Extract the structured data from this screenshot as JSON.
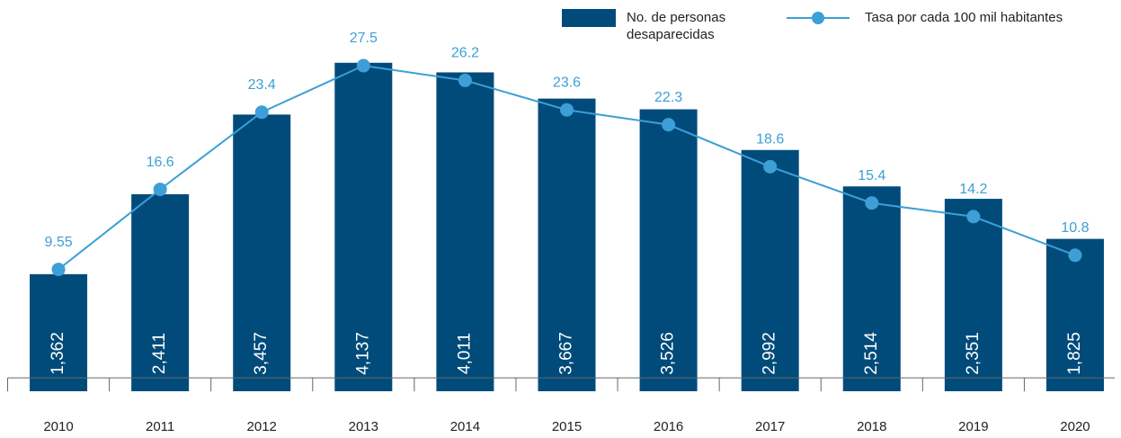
{
  "chart_data": {
    "type": "bar_line",
    "categories": [
      "2010",
      "2011",
      "2012",
      "2013",
      "2014",
      "2015",
      "2016",
      "2017",
      "2018",
      "2019",
      "2020"
    ],
    "series": [
      {
        "name": "No. de personas desaparecidas",
        "type": "bar",
        "color": "#004b7a",
        "values": [
          1362,
          2411,
          3457,
          4137,
          4011,
          3667,
          3526,
          2992,
          2514,
          2351,
          1825
        ],
        "value_labels": [
          "1,362",
          "2,411",
          "3,457",
          "4,137",
          "4,011",
          "3,667",
          "3,526",
          "2,992",
          "2,514",
          "2,351",
          "1,825"
        ]
      },
      {
        "name": "Tasa por cada 100 mil habitantes",
        "type": "line",
        "color": "#3d9fd6",
        "axis": "y2",
        "values": [
          9.55,
          16.6,
          23.4,
          27.5,
          26.2,
          23.6,
          22.3,
          18.6,
          15.4,
          14.2,
          10.8
        ]
      }
    ],
    "ylim": [
      -175,
      4725
    ],
    "y2lim": [
      -1.18,
      31.7
    ]
  }
}
